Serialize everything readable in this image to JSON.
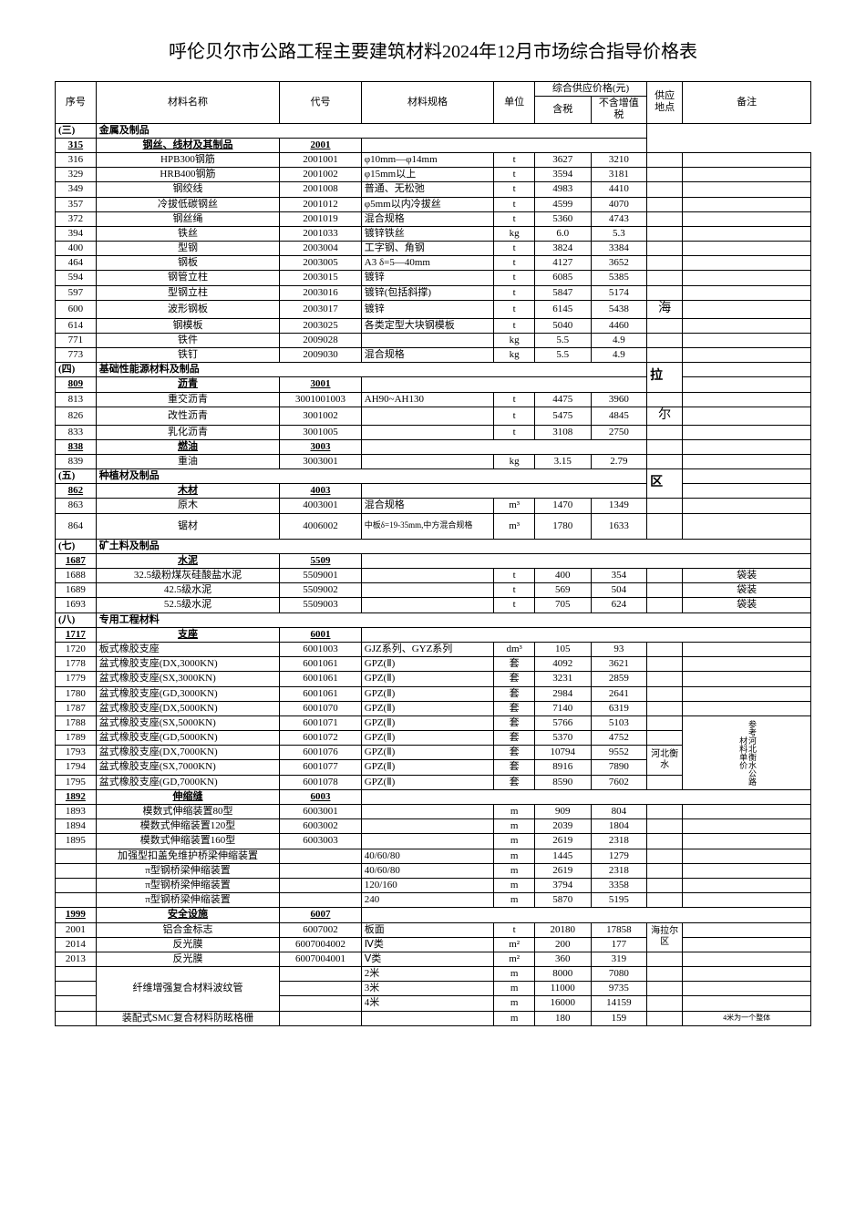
{
  "title": "呼伦贝尔市公路工程主要建筑材料2024年12月市场综合指导价格表",
  "headers": {
    "seq": "序号",
    "name": "材料名称",
    "code": "代号",
    "spec": "材料规格",
    "unit": "单位",
    "price_group": "综合供应价格(元)",
    "price_tax": "含税",
    "price_notax": "不含增值税",
    "location": "供应地点",
    "remark": "备注"
  },
  "sections": [
    {
      "seq": "(三)",
      "title": "金属及制品",
      "sub_headers": [
        {
          "seq": "315",
          "name": "钢丝、线材及其制品",
          "code": "2001"
        }
      ],
      "rows": [
        {
          "seq": "316",
          "name": "HPB300钢筋",
          "code": "2001001",
          "spec": "φ10mm—φ14mm",
          "unit": "t",
          "tax": "3627",
          "notax": "3210"
        },
        {
          "seq": "329",
          "name": "HRB400钢筋",
          "code": "2001002",
          "spec": "φ15mm以上",
          "unit": "t",
          "tax": "3594",
          "notax": "3181"
        },
        {
          "seq": "349",
          "name": "钢绞线",
          "code": "2001008",
          "spec": "普通、无松弛",
          "unit": "t",
          "tax": "4983",
          "notax": "4410"
        },
        {
          "seq": "357",
          "name": "冷拔低碳钢丝",
          "code": "2001012",
          "spec": "φ5mm以内冷拔丝",
          "unit": "t",
          "tax": "4599",
          "notax": "4070"
        },
        {
          "seq": "372",
          "name": "钢丝绳",
          "code": "2001019",
          "spec": "混合规格",
          "unit": "t",
          "tax": "5360",
          "notax": "4743"
        },
        {
          "seq": "394",
          "name": "铁丝",
          "code": "2001033",
          "spec": "镀锌铁丝",
          "unit": "kg",
          "tax": "6.0",
          "notax": "5.3"
        },
        {
          "seq": "400",
          "name": "型钢",
          "code": "2003004",
          "spec": "工字钢、角钢",
          "unit": "t",
          "tax": "3824",
          "notax": "3384"
        },
        {
          "seq": "464",
          "name": "钢板",
          "code": "2003005",
          "spec": "A3 δ=5—40mm",
          "unit": "t",
          "tax": "4127",
          "notax": "3652"
        },
        {
          "seq": "594",
          "name": "钢管立柱",
          "code": "2003015",
          "spec": "镀锌",
          "unit": "t",
          "tax": "6085",
          "notax": "5385"
        },
        {
          "seq": "597",
          "name": "型钢立柱",
          "code": "2003016",
          "spec": "镀锌(包括斜撑)",
          "unit": "t",
          "tax": "5847",
          "notax": "5174"
        },
        {
          "seq": "600",
          "name": "波形钢板",
          "code": "2003017",
          "spec": "镀锌",
          "unit": "t",
          "tax": "6145",
          "notax": "5438"
        },
        {
          "seq": "614",
          "name": "钢模板",
          "code": "2003025",
          "spec": "各类定型大块钢模板",
          "unit": "t",
          "tax": "5040",
          "notax": "4460"
        },
        {
          "seq": "771",
          "name": "铁件",
          "code": "2009028",
          "spec": "",
          "unit": "kg",
          "tax": "5.5",
          "notax": "4.9"
        },
        {
          "seq": "773",
          "name": "铁钉",
          "code": "2009030",
          "spec": "混合规格",
          "unit": "kg",
          "tax": "5.5",
          "notax": "4.9"
        }
      ],
      "location": "海"
    },
    {
      "seq": "(四)",
      "title": "基础性能源材料及制品",
      "sub_headers": [
        {
          "seq": "809",
          "name": "沥青",
          "code": "3001"
        }
      ],
      "rows": [
        {
          "seq": "813",
          "name": "重交沥青",
          "code": "3001001003",
          "spec": "AH90~AH130",
          "unit": "t",
          "tax": "4475",
          "notax": "3960"
        },
        {
          "seq": "826",
          "name": "改性沥青",
          "code": "3001002",
          "spec": "",
          "unit": "t",
          "tax": "5475",
          "notax": "4845"
        },
        {
          "seq": "833",
          "name": "乳化沥青",
          "code": "3001005",
          "spec": "",
          "unit": "t",
          "tax": "3108",
          "notax": "2750"
        }
      ],
      "sub_headers2": [
        {
          "seq": "838",
          "name": "燃油",
          "code": "3003"
        }
      ],
      "rows2": [
        {
          "seq": "839",
          "name": "重油",
          "code": "3003001",
          "spec": "",
          "unit": "kg",
          "tax": "3.15",
          "notax": "2.79"
        }
      ],
      "location": "拉",
      "location2": "尔"
    },
    {
      "seq": "(五)",
      "title": "种植材及制品",
      "sub_headers": [
        {
          "seq": "862",
          "name": "木材",
          "code": "4003"
        }
      ],
      "rows": [
        {
          "seq": "863",
          "name": "原木",
          "code": "4003001",
          "spec": "混合规格",
          "unit": "m³",
          "tax": "1470",
          "notax": "1349"
        },
        {
          "seq": "864",
          "name": "锯材",
          "code": "4006002",
          "spec": "中板δ=19-35mm,中方混合规格",
          "unit": "m³",
          "tax": "1780",
          "notax": "1633"
        }
      ],
      "location": "区"
    },
    {
      "seq": "(七)",
      "title": "矿土料及制品",
      "sub_headers": [
        {
          "seq": "1687",
          "name": "水泥",
          "code": "5509"
        }
      ],
      "rows": [
        {
          "seq": "1688",
          "name": "32.5级粉煤灰硅酸盐水泥",
          "code": "5509001",
          "spec": "",
          "unit": "t",
          "tax": "400",
          "notax": "354",
          "remark": "袋装"
        },
        {
          "seq": "1689",
          "name": "42.5级水泥",
          "code": "5509002",
          "spec": "",
          "unit": "t",
          "tax": "569",
          "notax": "504",
          "remark": "袋装"
        },
        {
          "seq": "1693",
          "name": "52.5级水泥",
          "code": "5509003",
          "spec": "",
          "unit": "t",
          "tax": "705",
          "notax": "624",
          "remark": "袋装"
        }
      ]
    },
    {
      "seq": "(八)",
      "title": "专用工程材料",
      "sub_headers": [
        {
          "seq": "1717",
          "name": "支座",
          "code": "6001"
        }
      ],
      "rows": [
        {
          "seq": "1720",
          "name": "板式橡胶支座",
          "code": "6001003",
          "spec": "GJZ系列、GYZ系列",
          "unit": "dm³",
          "tax": "105",
          "notax": "93"
        },
        {
          "seq": "1778",
          "name": "盆式橡胶支座(DX,3000KN)",
          "code": "6001061",
          "spec": "GPZ(Ⅱ)",
          "unit": "套",
          "tax": "4092",
          "notax": "3621"
        },
        {
          "seq": "1779",
          "name": "盆式橡胶支座(SX,3000KN)",
          "code": "6001061",
          "spec": "GPZ(Ⅱ)",
          "unit": "套",
          "tax": "3231",
          "notax": "2859"
        },
        {
          "seq": "1780",
          "name": "盆式橡胶支座(GD,3000KN)",
          "code": "6001061",
          "spec": "GPZ(Ⅱ)",
          "unit": "套",
          "tax": "2984",
          "notax": "2641"
        },
        {
          "seq": "1787",
          "name": "盆式橡胶支座(DX,5000KN)",
          "code": "6001070",
          "spec": "GPZ(Ⅱ)",
          "unit": "套",
          "tax": "7140",
          "notax": "6319"
        },
        {
          "seq": "1788",
          "name": "盆式橡胶支座(SX,5000KN)",
          "code": "6001071",
          "spec": "GPZ(Ⅱ)",
          "unit": "套",
          "tax": "5766",
          "notax": "5103"
        },
        {
          "seq": "1789",
          "name": "盆式橡胶支座(GD,5000KN)",
          "code": "6001072",
          "spec": "GPZ(Ⅱ)",
          "unit": "套",
          "tax": "5370",
          "notax": "4752"
        },
        {
          "seq": "1793",
          "name": "盆式橡胶支座(DX,7000KN)",
          "code": "6001076",
          "spec": "GPZ(Ⅱ)",
          "unit": "套",
          "tax": "10794",
          "notax": "9552"
        },
        {
          "seq": "1794",
          "name": "盆式橡胶支座(SX,7000KN)",
          "code": "6001077",
          "spec": "GPZ(Ⅱ)",
          "unit": "套",
          "tax": "8916",
          "notax": "7890"
        },
        {
          "seq": "1795",
          "name": "盆式橡胶支座(GD,7000KN)",
          "code": "6001078",
          "spec": "GPZ(Ⅱ)",
          "unit": "套",
          "tax": "8590",
          "notax": "7602"
        }
      ],
      "sub_headers2": [
        {
          "seq": "1892",
          "name": "伸缩缝",
          "code": "6003"
        }
      ],
      "rows2": [
        {
          "seq": "1893",
          "name": "模数式伸缩装置80型",
          "code": "6003001",
          "spec": "",
          "unit": "m",
          "tax": "909",
          "notax": "804"
        },
        {
          "seq": "1894",
          "name": "模数式伸缩装置120型",
          "code": "6003002",
          "spec": "",
          "unit": "m",
          "tax": "2039",
          "notax": "1804"
        },
        {
          "seq": "1895",
          "name": "模数式伸缩装置160型",
          "code": "6003003",
          "spec": "",
          "unit": "m",
          "tax": "2619",
          "notax": "2318"
        },
        {
          "seq": "",
          "name": "加强型扣盖免维护桥梁伸缩装置",
          "code": "",
          "spec": "40/60/80",
          "unit": "m",
          "tax": "1445",
          "notax": "1279"
        },
        {
          "seq": "",
          "name": "π型钢桥梁伸缩装置",
          "code": "",
          "spec": "40/60/80",
          "unit": "m",
          "tax": "2619",
          "notax": "2318"
        },
        {
          "seq": "",
          "name": "π型钢桥梁伸缩装置",
          "code": "",
          "spec": "120/160",
          "unit": "m",
          "tax": "3794",
          "notax": "3358"
        },
        {
          "seq": "",
          "name": "π型钢桥梁伸缩装置",
          "code": "",
          "spec": "240",
          "unit": "m",
          "tax": "5870",
          "notax": "5195"
        }
      ],
      "sub_headers3": [
        {
          "seq": "1999",
          "name": "安全设施",
          "code": "6007"
        }
      ],
      "rows3": [
        {
          "seq": "2001",
          "name": "铝合金标志",
          "code": "6007002",
          "spec": "板面",
          "unit": "t",
          "tax": "20180",
          "notax": "17858"
        },
        {
          "seq": "2014",
          "name": "反光膜",
          "code": "6007004002",
          "spec": "Ⅳ类",
          "unit": "m²",
          "tax": "200",
          "notax": "177"
        },
        {
          "seq": "2013",
          "name": "反光膜",
          "code": "6007004001",
          "spec": "Ⅴ类",
          "unit": "m²",
          "tax": "360",
          "notax": "319"
        },
        {
          "seq": "",
          "name": "",
          "code": "",
          "spec": "2米",
          "unit": "m",
          "tax": "8000",
          "notax": "7080"
        },
        {
          "seq": "",
          "name": "纤维增强复合材料波纹管",
          "code": "",
          "spec": "3米",
          "unit": "m",
          "tax": "11000",
          "notax": "9735"
        },
        {
          "seq": "",
          "name": "",
          "code": "",
          "spec": "4米",
          "unit": "m",
          "tax": "16000",
          "notax": "14159"
        },
        {
          "seq": "",
          "name": "装配式SMC复合材料防眩格栅",
          "code": "",
          "spec": "",
          "unit": "m",
          "tax": "180",
          "notax": "159",
          "remark": "4米为一个整体"
        }
      ],
      "location_hebei": "河北衡水",
      "remark_hebei": "参考河北衡水公路材料单价",
      "location_haila": "海拉尔区"
    }
  ]
}
